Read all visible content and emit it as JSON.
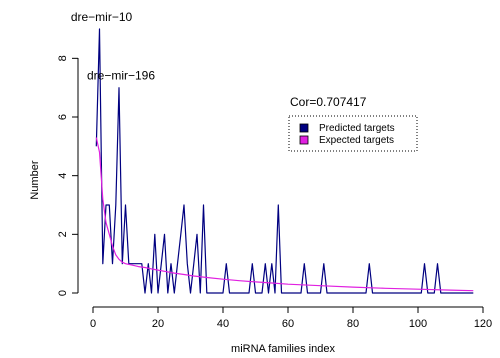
{
  "chart_data": {
    "type": "line",
    "xlabel": "miRNA families index",
    "ylabel": "Number",
    "xlim": [
      0,
      120
    ],
    "ylim": [
      0,
      9
    ],
    "xticks": [
      "0",
      "20",
      "40",
      "60",
      "80",
      "100",
      "120"
    ],
    "yticks": [
      "0",
      "2",
      "4",
      "6",
      "8"
    ],
    "grid": false,
    "legend_position": "top-right",
    "legend_title": "Cor=0.707417",
    "series": [
      {
        "name": "Predicted targets",
        "color": "#000080",
        "x": [
          1,
          2,
          3,
          4,
          5,
          6,
          7,
          8,
          9,
          10,
          11,
          12,
          13,
          14,
          15,
          16,
          17,
          18,
          19,
          20,
          21,
          22,
          23,
          24,
          25,
          26,
          27,
          28,
          29,
          30,
          31,
          32,
          33,
          34,
          35,
          36,
          37,
          38,
          39,
          40,
          41,
          42,
          43,
          44,
          45,
          46,
          47,
          48,
          49,
          50,
          51,
          52,
          53,
          54,
          55,
          56,
          57,
          58,
          59,
          60,
          61,
          62,
          63,
          64,
          65,
          66,
          67,
          68,
          69,
          70,
          71,
          72,
          73,
          74,
          75,
          76,
          77,
          78,
          79,
          80,
          81,
          82,
          83,
          84,
          85,
          86,
          87,
          88,
          89,
          90,
          91,
          92,
          93,
          94,
          95,
          96,
          97,
          98,
          99,
          100,
          101,
          102,
          103,
          104,
          105,
          106,
          107,
          108,
          109,
          110,
          111,
          112,
          113,
          114,
          115,
          116,
          117
        ],
        "y": [
          5,
          9,
          1,
          3,
          3,
          1,
          3,
          7,
          1,
          3,
          1,
          1,
          1,
          1,
          1,
          0,
          1,
          0,
          2,
          0,
          1,
          2,
          0,
          1,
          0,
          1,
          2,
          3,
          1,
          0,
          1,
          2,
          0,
          3,
          0,
          0,
          0,
          0,
          0,
          0,
          1,
          0,
          0,
          0,
          0,
          0,
          0,
          0,
          1,
          0,
          0,
          0,
          1,
          0,
          1,
          0,
          3,
          0,
          0,
          0,
          0,
          0,
          0,
          0,
          1,
          0,
          0,
          0,
          0,
          0,
          1,
          0,
          0,
          0,
          0,
          0,
          0,
          0,
          0,
          0,
          0,
          0,
          0,
          0,
          1,
          0,
          0,
          0,
          0,
          0,
          0,
          0,
          0,
          0,
          0,
          0,
          0,
          0,
          0,
          0,
          0,
          1,
          0,
          0,
          0,
          1,
          0,
          0,
          0,
          0,
          0,
          0,
          0,
          0,
          0,
          0,
          0
        ]
      },
      {
        "name": "Expected targets",
        "color": "#e020e0",
        "x": [
          1,
          2,
          3,
          4,
          5,
          6,
          7,
          8,
          9,
          10,
          12,
          14,
          16,
          18,
          20,
          22,
          25,
          28,
          31,
          35,
          40,
          45,
          50,
          55,
          60,
          70,
          80,
          90,
          100,
          110,
          117
        ],
        "y": [
          5.3,
          4.8,
          3.2,
          2.4,
          2.0,
          1.6,
          1.3,
          1.15,
          1.05,
          1.0,
          0.95,
          0.9,
          0.87,
          0.82,
          0.78,
          0.74,
          0.68,
          0.63,
          0.58,
          0.53,
          0.47,
          0.42,
          0.38,
          0.34,
          0.3,
          0.25,
          0.2,
          0.16,
          0.13,
          0.1,
          0.08
        ]
      }
    ],
    "annotations": [
      {
        "text": "dre−mir−10",
        "x": 2,
        "y": 9
      },
      {
        "text": "dre−mir−196",
        "x": 8,
        "y": 7
      }
    ]
  }
}
